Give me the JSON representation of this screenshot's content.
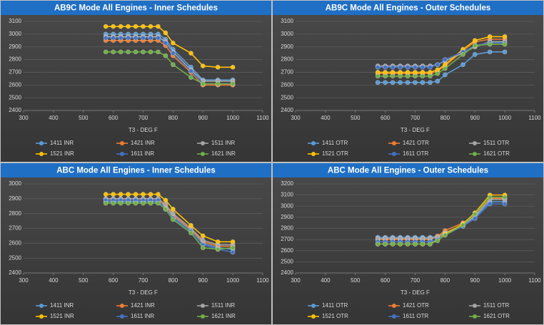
{
  "chart_data": [
    {
      "type": "line",
      "title": "AB9C Mode All Engines - Inner Schedules",
      "x_label": "T3 - DEG F",
      "xlim": [
        300,
        1100
      ],
      "xticks": [
        300,
        400,
        500,
        600,
        700,
        800,
        900,
        1000,
        1100
      ],
      "ylim": [
        2400,
        3100
      ],
      "yticks": [
        2400,
        2500,
        2600,
        2700,
        2800,
        2900,
        3000,
        3100
      ],
      "grid": true,
      "x": [
        575,
        600,
        625,
        650,
        675,
        700,
        725,
        750,
        775,
        800,
        860,
        900,
        950,
        1000
      ],
      "series": [
        {
          "name": "1411 INR",
          "color": "#5b9bd5",
          "values": [
            3000,
            3000,
            3000,
            3000,
            3000,
            3000,
            3000,
            3000,
            2960,
            2880,
            2740,
            2640,
            2640,
            2640
          ]
        },
        {
          "name": "1421 INR",
          "color": "#ed7d31",
          "values": [
            2950,
            2950,
            2950,
            2950,
            2950,
            2950,
            2950,
            2950,
            2910,
            2830,
            2700,
            2600,
            2600,
            2600
          ]
        },
        {
          "name": "1511 INR",
          "color": "#a5a5a5",
          "values": [
            2980,
            2980,
            2980,
            2980,
            2980,
            2980,
            2980,
            2980,
            2940,
            2860,
            2720,
            2630,
            2630,
            2630
          ]
        },
        {
          "name": "1521 INR",
          "color": "#ffc000",
          "values": [
            3060,
            3060,
            3060,
            3060,
            3060,
            3060,
            3060,
            3060,
            3010,
            2930,
            2850,
            2750,
            2740,
            2740
          ]
        },
        {
          "name": "1611 INR",
          "color": "#4472c4",
          "values": [
            2970,
            2970,
            2970,
            2970,
            2970,
            2970,
            2970,
            2970,
            2930,
            2850,
            2710,
            2610,
            2610,
            2610
          ]
        },
        {
          "name": "1621 INR",
          "color": "#70ad47",
          "values": [
            2860,
            2860,
            2860,
            2860,
            2860,
            2860,
            2860,
            2860,
            2830,
            2760,
            2660,
            2610,
            2610,
            2610
          ]
        }
      ]
    },
    {
      "type": "line",
      "title": "AB9C Mode All Engines - Outer Schedules",
      "x_label": "T3 - DEG F",
      "xlim": [
        300,
        1100
      ],
      "xticks": [
        300,
        400,
        500,
        600,
        700,
        800,
        900,
        1000,
        1100
      ],
      "ylim": [
        2400,
        3100
      ],
      "yticks": [
        2400,
        2500,
        2600,
        2700,
        2800,
        2900,
        3000,
        3100
      ],
      "grid": true,
      "x": [
        575,
        600,
        625,
        650,
        675,
        700,
        725,
        750,
        775,
        800,
        860,
        900,
        950,
        1000
      ],
      "series": [
        {
          "name": "1411 OTR",
          "color": "#5b9bd5",
          "values": [
            2620,
            2620,
            2620,
            2620,
            2620,
            2620,
            2620,
            2620,
            2630,
            2680,
            2760,
            2840,
            2860,
            2860
          ]
        },
        {
          "name": "1421 OTR",
          "color": "#ed7d31",
          "values": [
            2690,
            2690,
            2690,
            2690,
            2690,
            2690,
            2690,
            2690,
            2710,
            2750,
            2870,
            2940,
            2960,
            2960
          ]
        },
        {
          "name": "1511 OTR",
          "color": "#a5a5a5",
          "values": [
            2750,
            2750,
            2750,
            2750,
            2750,
            2750,
            2750,
            2750,
            2760,
            2790,
            2850,
            2900,
            2940,
            2940
          ]
        },
        {
          "name": "1521 OTR",
          "color": "#ffc000",
          "values": [
            2700,
            2700,
            2700,
            2700,
            2700,
            2700,
            2700,
            2700,
            2720,
            2760,
            2880,
            2950,
            2980,
            2980
          ]
        },
        {
          "name": "1611 OTR",
          "color": "#4472c4",
          "values": [
            2740,
            2740,
            2740,
            2740,
            2740,
            2740,
            2740,
            2740,
            2760,
            2800,
            2860,
            2910,
            2930,
            2930
          ]
        },
        {
          "name": "1621 OTR",
          "color": "#70ad47",
          "values": [
            2670,
            2670,
            2670,
            2670,
            2670,
            2670,
            2670,
            2670,
            2690,
            2730,
            2840,
            2910,
            2920,
            2920
          ]
        }
      ]
    },
    {
      "type": "line",
      "title": "ABC Mode All Engines - Inner Schedules",
      "x_label": "T3 - DEG F",
      "xlim": [
        300,
        1100
      ],
      "xticks": [
        300,
        400,
        500,
        600,
        700,
        800,
        900,
        1000,
        1100
      ],
      "ylim": [
        2400,
        3000
      ],
      "yticks": [
        2400,
        2500,
        2600,
        2700,
        2800,
        2900,
        3000
      ],
      "grid": true,
      "x": [
        575,
        600,
        625,
        650,
        675,
        700,
        725,
        750,
        775,
        800,
        860,
        900,
        950,
        1000
      ],
      "series": [
        {
          "name": "1411 INR",
          "color": "#5b9bd5",
          "values": [
            2880,
            2880,
            2880,
            2880,
            2880,
            2880,
            2880,
            2880,
            2840,
            2780,
            2680,
            2600,
            2570,
            2560
          ]
        },
        {
          "name": "1421 INR",
          "color": "#ed7d31",
          "values": [
            2890,
            2890,
            2890,
            2890,
            2890,
            2890,
            2890,
            2890,
            2850,
            2790,
            2690,
            2610,
            2580,
            2580
          ]
        },
        {
          "name": "1511 INR",
          "color": "#a5a5a5",
          "values": [
            2900,
            2900,
            2900,
            2900,
            2900,
            2900,
            2900,
            2900,
            2860,
            2800,
            2700,
            2620,
            2590,
            2590
          ]
        },
        {
          "name": "1521 INR",
          "color": "#ffc000",
          "values": [
            2930,
            2930,
            2930,
            2930,
            2930,
            2930,
            2930,
            2930,
            2890,
            2830,
            2720,
            2650,
            2610,
            2610
          ]
        },
        {
          "name": "1611 INR",
          "color": "#4472c4",
          "values": [
            2890,
            2890,
            2890,
            2890,
            2890,
            2890,
            2890,
            2890,
            2830,
            2770,
            2680,
            2590,
            2560,
            2540
          ]
        },
        {
          "name": "1621 INR",
          "color": "#70ad47",
          "values": [
            2870,
            2870,
            2870,
            2870,
            2870,
            2870,
            2870,
            2870,
            2830,
            2760,
            2670,
            2570,
            2560,
            2570
          ]
        }
      ]
    },
    {
      "type": "line",
      "title": "ABC Mode All Engines - Outer Schedules",
      "x_label": "T3 - DEG F",
      "xlim": [
        300,
        1100
      ],
      "xticks": [
        300,
        400,
        500,
        600,
        700,
        800,
        900,
        1000,
        1100
      ],
      "ylim": [
        2400,
        3200
      ],
      "yticks": [
        2400,
        2500,
        2600,
        2700,
        2800,
        2900,
        3000,
        3100,
        3200
      ],
      "grid": true,
      "x": [
        575,
        600,
        625,
        650,
        675,
        700,
        725,
        750,
        775,
        800,
        860,
        900,
        950,
        1000
      ],
      "series": [
        {
          "name": "1411 OTR",
          "color": "#5b9bd5",
          "values": [
            2720,
            2720,
            2720,
            2720,
            2720,
            2720,
            2720,
            2720,
            2730,
            2760,
            2820,
            2900,
            3040,
            3040
          ]
        },
        {
          "name": "1421 OTR",
          "color": "#ed7d31",
          "values": [
            2700,
            2700,
            2700,
            2700,
            2700,
            2700,
            2700,
            2700,
            2730,
            2780,
            2850,
            2920,
            3070,
            3070
          ]
        },
        {
          "name": "1511 OTR",
          "color": "#a5a5a5",
          "values": [
            2710,
            2710,
            2710,
            2710,
            2710,
            2710,
            2710,
            2710,
            2720,
            2760,
            2830,
            2910,
            3060,
            3060
          ]
        },
        {
          "name": "1521 OTR",
          "color": "#ffc000",
          "values": [
            2660,
            2660,
            2660,
            2660,
            2660,
            2660,
            2660,
            2660,
            2700,
            2750,
            2840,
            2940,
            3100,
            3100
          ]
        },
        {
          "name": "1611 OTR",
          "color": "#4472c4",
          "values": [
            2680,
            2680,
            2680,
            2680,
            2680,
            2680,
            2680,
            2680,
            2700,
            2740,
            2820,
            2890,
            3020,
            3020
          ]
        },
        {
          "name": "1621 OTR",
          "color": "#70ad47",
          "values": [
            2660,
            2660,
            2660,
            2660,
            2660,
            2660,
            2660,
            2660,
            2690,
            2740,
            2830,
            2930,
            3080,
            3080
          ]
        }
      ]
    }
  ]
}
